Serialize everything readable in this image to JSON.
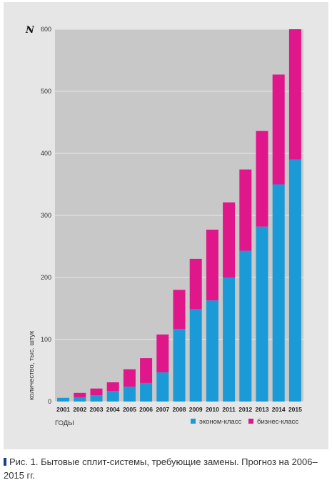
{
  "chart_data": {
    "type": "bar",
    "stacked": true,
    "categories": [
      "2001",
      "2002",
      "2003",
      "2004",
      "2005",
      "2006",
      "2007",
      "2008",
      "2009",
      "2010",
      "2011",
      "2012",
      "2013",
      "2014",
      "2015"
    ],
    "series": [
      {
        "name": "эконом-класс",
        "color": "#1a9ad6",
        "values": [
          6,
          7,
          10,
          17,
          24,
          30,
          47,
          117,
          149,
          163,
          200,
          243,
          282,
          350,
          390
        ]
      },
      {
        "name": "бизнес-класс",
        "color": "#e0168b",
        "values": [
          0,
          7,
          11,
          14,
          28,
          40,
          61,
          63,
          81,
          114,
          121,
          131,
          154,
          177,
          210
        ]
      }
    ],
    "ylabel": "количество, тыс. штук",
    "ylabel_symbol": "N",
    "xlabel": "годы",
    "ylim": [
      0,
      600
    ],
    "yticks": [
      0,
      100,
      200,
      300,
      400,
      500,
      600
    ],
    "grid": true,
    "legend_position": "bottom-right"
  },
  "caption": {
    "text": "Рис. 1. Бытовые сплит-системы, требующие замены. Прогноз на 2006–2015 гг."
  }
}
